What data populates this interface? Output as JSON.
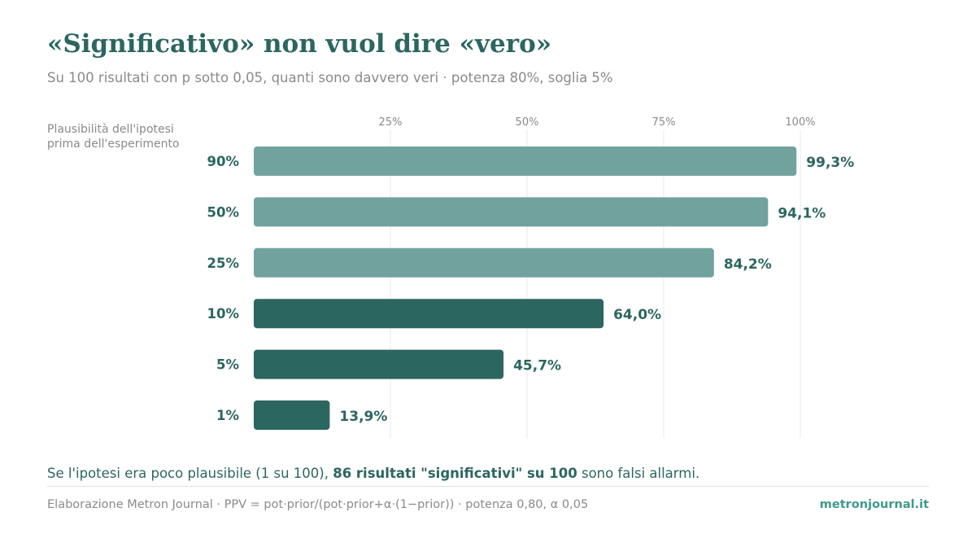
{
  "header": {
    "title": "«Significativo» non vuol dire «vero»",
    "subtitle": "Su 100 risultati con p sotto 0,05, quanti sono davvero veri · potenza 80%, soglia 5%"
  },
  "chart_data": {
    "type": "bar",
    "orientation": "horizontal",
    "ylabel_lines": [
      "Plausibilità dell'ipotesi",
      "prima dell'esperimento"
    ],
    "categories": [
      "90%",
      "50%",
      "25%",
      "10%",
      "5%",
      "1%"
    ],
    "values": [
      99.3,
      94.1,
      84.2,
      64.0,
      45.7,
      13.9
    ],
    "value_labels": [
      "99,3%",
      "94,1%",
      "84,2%",
      "64,0%",
      "45,7%",
      "13,9%"
    ],
    "xlim": [
      0,
      100
    ],
    "x_ticks": [
      25,
      50,
      75,
      100
    ],
    "x_tick_labels": [
      "25%",
      "50%",
      "75%",
      "100%"
    ],
    "tick_position": "top",
    "grid": true,
    "bar_colors": [
      "#72a29e",
      "#72a29e",
      "#72a29e",
      "#2c6660",
      "#2c6660",
      "#2c6660"
    ],
    "label_color": "#2c6660",
    "grid_color": "#e8e8e8",
    "tick_color": "#8a8a8a"
  },
  "footer": {
    "note_before": "Se l'ipotesi era poco plausibile (1 su 100), ",
    "note_bold": "86 risultati \"significativi\" su 100",
    "note_after": " sono falsi allarmi.",
    "source": "Elaborazione Metron Journal · PPV = pot·prior/(pot·prior+α·(1−prior)) · potenza 0,80, α 0,05",
    "brand": "metronjournal.it"
  }
}
